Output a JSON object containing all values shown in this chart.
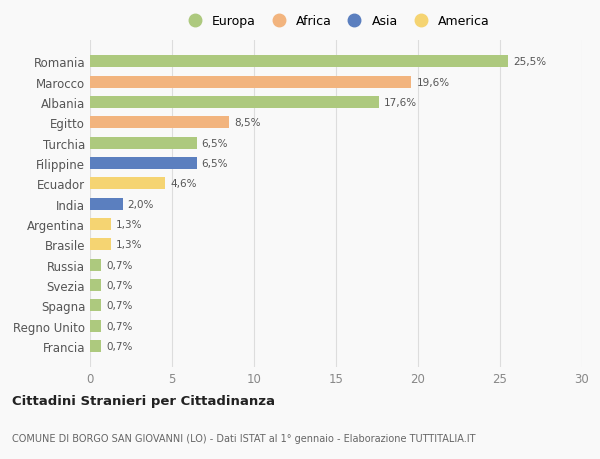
{
  "countries": [
    "Romania",
    "Marocco",
    "Albania",
    "Egitto",
    "Turchia",
    "Filippine",
    "Ecuador",
    "India",
    "Argentina",
    "Brasile",
    "Russia",
    "Svezia",
    "Spagna",
    "Regno Unito",
    "Francia"
  ],
  "values": [
    25.5,
    19.6,
    17.6,
    8.5,
    6.5,
    6.5,
    4.6,
    2.0,
    1.3,
    1.3,
    0.7,
    0.7,
    0.7,
    0.7,
    0.7
  ],
  "labels": [
    "25,5%",
    "19,6%",
    "17,6%",
    "8,5%",
    "6,5%",
    "6,5%",
    "4,6%",
    "2,0%",
    "1,3%",
    "1,3%",
    "0,7%",
    "0,7%",
    "0,7%",
    "0,7%",
    "0,7%"
  ],
  "continents": [
    "Europa",
    "Africa",
    "Europa",
    "Africa",
    "Europa",
    "Asia",
    "America",
    "Asia",
    "America",
    "America",
    "Europa",
    "Europa",
    "Europa",
    "Europa",
    "Europa"
  ],
  "colors": {
    "Europa": "#adc97e",
    "Africa": "#f2b47e",
    "Asia": "#5b7fbf",
    "America": "#f5d472"
  },
  "xlim": [
    0,
    30
  ],
  "xticks": [
    0,
    5,
    10,
    15,
    20,
    25,
    30
  ],
  "title": "Cittadini Stranieri per Cittadinanza",
  "subtitle": "COMUNE DI BORGO SAN GIOVANNI (LO) - Dati ISTAT al 1° gennaio - Elaborazione TUTTITALIA.IT",
  "background_color": "#f9f9f9",
  "bar_height": 0.6,
  "grid_color": "#dddddd",
  "legend_order": [
    "Europa",
    "Africa",
    "Asia",
    "America"
  ]
}
